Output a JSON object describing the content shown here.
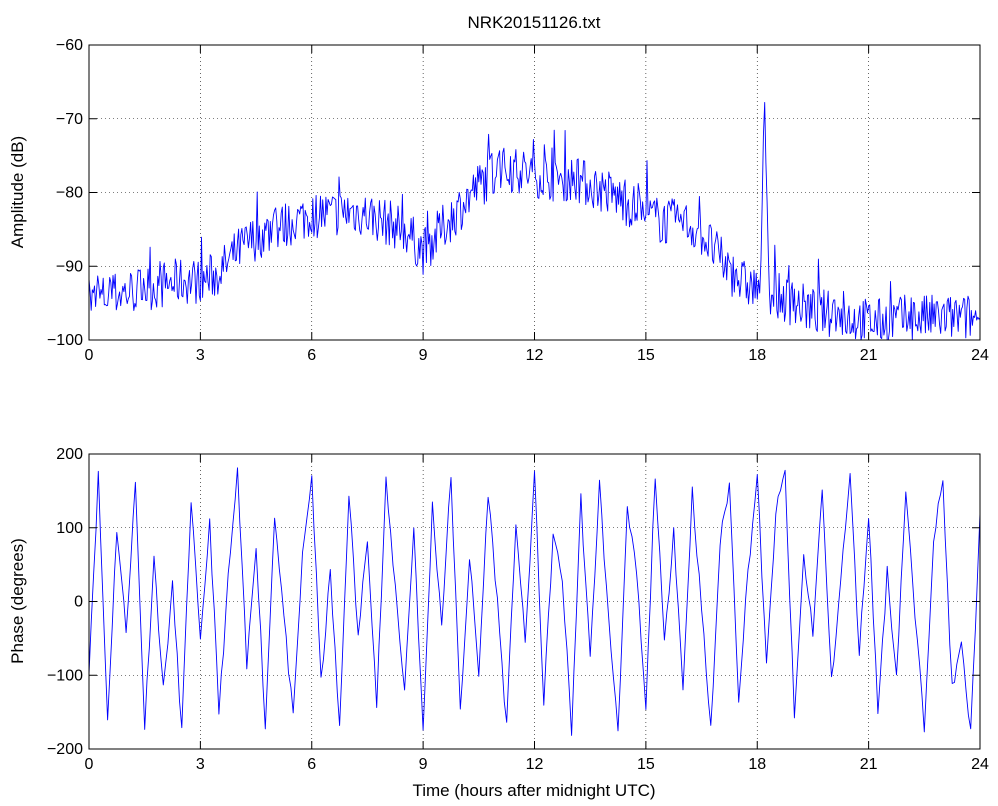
{
  "chart_data": [
    {
      "type": "line",
      "title": "NRK20151126.txt",
      "xlabel": "",
      "ylabel": "Amplitude (dB)",
      "xlim": [
        0,
        24
      ],
      "ylim": [
        -100,
        -60
      ],
      "xticks": [
        0,
        3,
        6,
        9,
        12,
        15,
        18,
        21,
        24
      ],
      "yticks": [
        -100,
        -90,
        -80,
        -70,
        -60
      ],
      "grid": true,
      "series_color": "#0000ff",
      "series": [
        {
          "x": [
            0,
            0.5,
            1,
            1.5,
            2,
            2.5,
            3,
            3.5,
            4,
            4.5,
            5,
            5.5,
            6,
            6.5,
            7,
            7.5,
            8,
            8.5,
            9,
            9.5,
            10,
            10.5,
            11,
            11.5,
            12,
            12.5,
            13,
            13.5,
            14,
            14.5,
            15,
            15.5,
            16,
            16.5,
            17,
            17.5,
            18,
            18.1,
            18.2,
            18.3,
            18.5,
            19,
            19.5,
            20,
            20.5,
            21,
            21.5,
            22,
            22.5,
            23,
            23.5,
            24
          ],
          "values": [
            -95,
            -94,
            -93.5,
            -93,
            -92.5,
            -92,
            -92,
            -91,
            -88,
            -86,
            -85,
            -84,
            -83,
            -83,
            -82.5,
            -83,
            -84,
            -85,
            -88,
            -85,
            -82,
            -79,
            -77,
            -77,
            -77.5,
            -78,
            -78,
            -79,
            -80,
            -81.5,
            -83,
            -84,
            -84,
            -85.5,
            -89,
            -92,
            -93,
            -92,
            -66,
            -93,
            -94,
            -95,
            -96,
            -96.5,
            -97,
            -97.5,
            -97.5,
            -97,
            -97,
            -97,
            -97,
            -97
          ]
        }
      ]
    },
    {
      "type": "line",
      "title": "",
      "xlabel": "Time (hours after midnight UTC)",
      "ylabel": "Phase (degrees)",
      "xlim": [
        0,
        24
      ],
      "ylim": [
        -200,
        200
      ],
      "xticks": [
        0,
        3,
        6,
        9,
        12,
        15,
        18,
        21,
        24
      ],
      "yticks": [
        -200,
        -100,
        0,
        100,
        200
      ],
      "grid": true,
      "series_color": "#0000ff",
      "series": [
        {
          "x": [
            0,
            0.25,
            0.5,
            0.75,
            1,
            1.25,
            1.5,
            1.75,
            2,
            2.25,
            2.5,
            2.75,
            3,
            3.25,
            3.5,
            3.75,
            4,
            4.25,
            4.5,
            4.75,
            5,
            5.25,
            5.5,
            5.75,
            6,
            6.25,
            6.5,
            6.75,
            7,
            7.25,
            7.5,
            7.75,
            8,
            8.25,
            8.5,
            8.75,
            9,
            9.25,
            9.5,
            9.75,
            10,
            10.25,
            10.5,
            10.75,
            11,
            11.25,
            11.5,
            11.75,
            12,
            12.25,
            12.5,
            12.75,
            13,
            13.25,
            13.5,
            13.75,
            14,
            14.25,
            14.5,
            14.75,
            15,
            15.25,
            15.5,
            15.75,
            16,
            16.25,
            16.5,
            16.75,
            17,
            17.25,
            17.5,
            17.75,
            18,
            18.25,
            18.5,
            18.75,
            19,
            19.25,
            19.5,
            19.75,
            20,
            20.25,
            20.5,
            20.75,
            21,
            21.25,
            21.5,
            21.75,
            22,
            22.25,
            22.5,
            22.75,
            23,
            23.25,
            23.5,
            23.75,
            24
          ],
          "values": [
            -90,
            170,
            -160,
            100,
            -40,
            160,
            -170,
            60,
            -120,
            20,
            -175,
            140,
            -60,
            110,
            -150,
            30,
            175,
            -90,
            80,
            -170,
            120,
            -20,
            -160,
            60,
            170,
            -110,
            40,
            -175,
            150,
            -50,
            90,
            -140,
            160,
            20,
            -120,
            100,
            -180,
            130,
            -30,
            170,
            -150,
            60,
            -100,
            150,
            0,
            -170,
            110,
            -60,
            175,
            -140,
            90,
            30,
            -175,
            140,
            -80,
            160,
            -30,
            -170,
            120,
            40,
            -150,
            175,
            -60,
            100,
            -120,
            150,
            -10,
            -175,
            80,
            160,
            -130,
            40,
            170,
            -90,
            120,
            175,
            -160,
            60,
            -40,
            150,
            -110,
            30,
            170,
            -70,
            120,
            -150,
            40,
            -100,
            150,
            -20,
            -170,
            90,
            160,
            -120,
            -60,
            -180,
            120
          ]
        }
      ]
    }
  ]
}
